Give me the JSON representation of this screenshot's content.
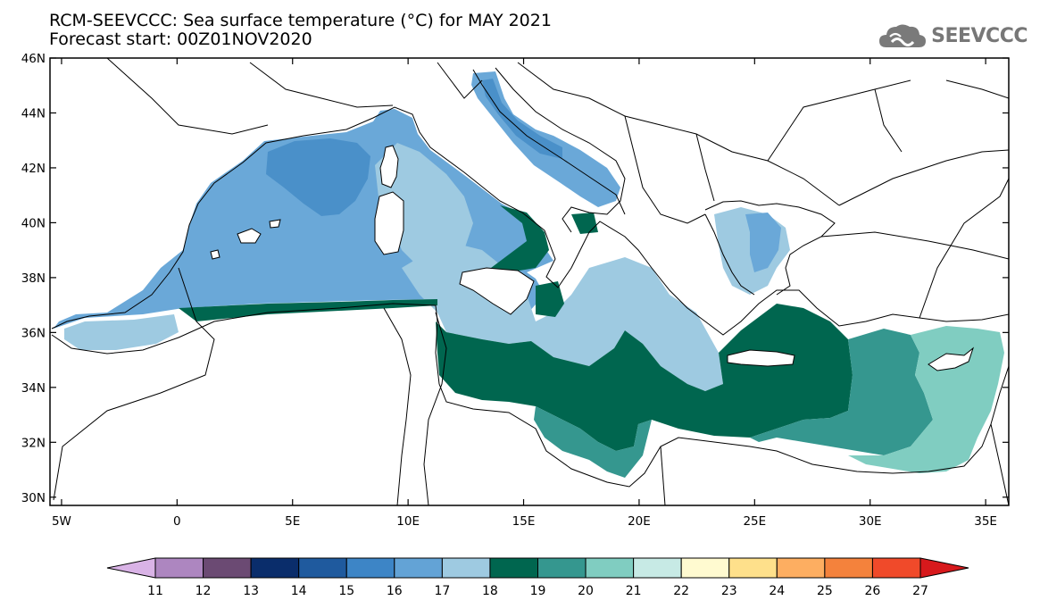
{
  "title": {
    "line1": "RCM-SEEVCCC: Sea surface temperature (°C) for MAY 2021",
    "line2": "Forecast start: 00Z01NOV2020"
  },
  "logo": {
    "text": "SEEVCCC",
    "icon": "cloud-icon"
  },
  "map": {
    "lon_range": [
      -5.5,
      36.0
    ],
    "lat_range": [
      29.7,
      46.0
    ],
    "lon_ticks": [
      {
        "lon": -5,
        "label": "5W"
      },
      {
        "lon": 0,
        "label": "0"
      },
      {
        "lon": 5,
        "label": "5E"
      },
      {
        "lon": 10,
        "label": "10E"
      },
      {
        "lon": 15,
        "label": "15E"
      },
      {
        "lon": 20,
        "label": "20E"
      },
      {
        "lon": 25,
        "label": "25E"
      },
      {
        "lon": 30,
        "label": "30E"
      },
      {
        "lon": 35,
        "label": "35E"
      }
    ],
    "lat_ticks": [
      {
        "lat": 30,
        "label": "30N"
      },
      {
        "lat": 32,
        "label": "32N"
      },
      {
        "lat": 34,
        "label": "34N"
      },
      {
        "lat": 36,
        "label": "36N"
      },
      {
        "lat": 38,
        "label": "38N"
      },
      {
        "lat": 40,
        "label": "40N"
      },
      {
        "lat": 42,
        "label": "42N"
      },
      {
        "lat": 44,
        "label": "44N"
      },
      {
        "lat": 46,
        "label": "46N"
      }
    ],
    "field_colors": {
      "15": "#2166ac",
      "16": "#4a90c9",
      "17": "#6aa8d8",
      "18": "#9ecae1",
      "19": "#00664f",
      "20": "#35978f",
      "21": "#80cdc1",
      "22": "#c7eae5"
    }
  },
  "colorbar": {
    "labels": [
      "11",
      "12",
      "13",
      "14",
      "15",
      "16",
      "17",
      "18",
      "19",
      "20",
      "21",
      "22",
      "23",
      "24",
      "25",
      "26",
      "27"
    ],
    "colors": [
      "#d9b3e6",
      "#ad86c0",
      "#6b4a73",
      "#0a2d6b",
      "#1f5a9e",
      "#3d85c6",
      "#63a3d6",
      "#9ecae1",
      "#00664f",
      "#35978f",
      "#80cdc1",
      "#c7eae5",
      "#fffad0",
      "#fee08b",
      "#fdae61",
      "#f4823c",
      "#f04a2a",
      "#d7191c"
    ]
  }
}
